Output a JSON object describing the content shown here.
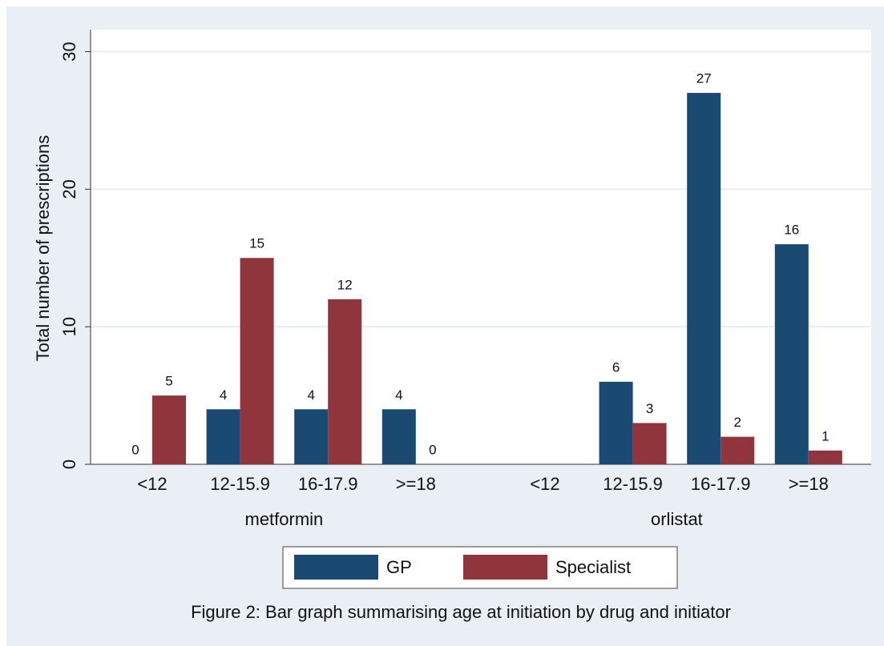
{
  "chart_data": {
    "type": "bar",
    "title": "Figure 2: Bar graph summarising age at initiation by drug and initiator",
    "y_label": "Total number of prescriptions",
    "groups": [
      {
        "label": "metformin",
        "categories": [
          "<12",
          "12-15.9",
          "16-17.9",
          ">=18"
        ]
      },
      {
        "label": "orlistat",
        "categories": [
          "<12",
          "12-15.9",
          "16-17.9",
          ">=18"
        ]
      }
    ],
    "series": [
      {
        "name": "GP",
        "color": "#1a4a72",
        "values": [
          [
            0,
            4,
            4,
            4
          ],
          [
            null,
            6,
            27,
            16
          ]
        ]
      },
      {
        "name": "Specialist",
        "color": "#90353b",
        "values": [
          [
            5,
            15,
            12,
            0
          ],
          [
            null,
            3,
            2,
            1
          ]
        ]
      }
    ],
    "ylim": [
      0,
      31.6
    ],
    "yticks": [
      0,
      10,
      20,
      30
    ],
    "grid": true,
    "legend": "bottom"
  }
}
